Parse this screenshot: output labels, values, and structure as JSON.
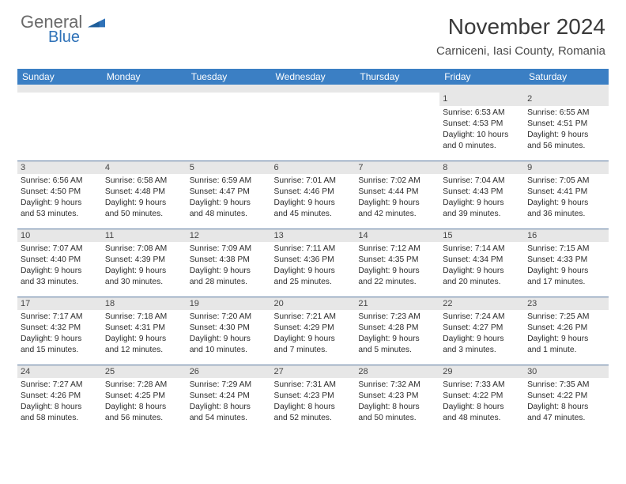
{
  "logo": {
    "text1": "General",
    "text2": "Blue",
    "text1_color": "#6a6a6a",
    "text2_color": "#2f72b8"
  },
  "title": "November 2024",
  "subtitle": "Carniceni, Iasi County, Romania",
  "style": {
    "header_bg": "#3b7fc4",
    "header_fg": "#ffffff",
    "daynum_bg": "#e7e7e7",
    "row_divider": "#5a7aa0",
    "body_font_size": 10.3,
    "daynum_font_size": 11,
    "th_font_size": 12,
    "title_font_size": 28,
    "subtitle_font_size": 15
  },
  "weekdays": [
    "Sunday",
    "Monday",
    "Tuesday",
    "Wednesday",
    "Thursday",
    "Friday",
    "Saturday"
  ],
  "weeks": [
    [
      null,
      null,
      null,
      null,
      null,
      {
        "n": "1",
        "sunrise": "6:53 AM",
        "sunset": "4:53 PM",
        "day_h": "10",
        "day_m": "0"
      },
      {
        "n": "2",
        "sunrise": "6:55 AM",
        "sunset": "4:51 PM",
        "day_h": "9",
        "day_m": "56"
      }
    ],
    [
      {
        "n": "3",
        "sunrise": "6:56 AM",
        "sunset": "4:50 PM",
        "day_h": "9",
        "day_m": "53"
      },
      {
        "n": "4",
        "sunrise": "6:58 AM",
        "sunset": "4:48 PM",
        "day_h": "9",
        "day_m": "50"
      },
      {
        "n": "5",
        "sunrise": "6:59 AM",
        "sunset": "4:47 PM",
        "day_h": "9",
        "day_m": "48"
      },
      {
        "n": "6",
        "sunrise": "7:01 AM",
        "sunset": "4:46 PM",
        "day_h": "9",
        "day_m": "45"
      },
      {
        "n": "7",
        "sunrise": "7:02 AM",
        "sunset": "4:44 PM",
        "day_h": "9",
        "day_m": "42"
      },
      {
        "n": "8",
        "sunrise": "7:04 AM",
        "sunset": "4:43 PM",
        "day_h": "9",
        "day_m": "39"
      },
      {
        "n": "9",
        "sunrise": "7:05 AM",
        "sunset": "4:41 PM",
        "day_h": "9",
        "day_m": "36"
      }
    ],
    [
      {
        "n": "10",
        "sunrise": "7:07 AM",
        "sunset": "4:40 PM",
        "day_h": "9",
        "day_m": "33"
      },
      {
        "n": "11",
        "sunrise": "7:08 AM",
        "sunset": "4:39 PM",
        "day_h": "9",
        "day_m": "30"
      },
      {
        "n": "12",
        "sunrise": "7:09 AM",
        "sunset": "4:38 PM",
        "day_h": "9",
        "day_m": "28"
      },
      {
        "n": "13",
        "sunrise": "7:11 AM",
        "sunset": "4:36 PM",
        "day_h": "9",
        "day_m": "25"
      },
      {
        "n": "14",
        "sunrise": "7:12 AM",
        "sunset": "4:35 PM",
        "day_h": "9",
        "day_m": "22"
      },
      {
        "n": "15",
        "sunrise": "7:14 AM",
        "sunset": "4:34 PM",
        "day_h": "9",
        "day_m": "20"
      },
      {
        "n": "16",
        "sunrise": "7:15 AM",
        "sunset": "4:33 PM",
        "day_h": "9",
        "day_m": "17"
      }
    ],
    [
      {
        "n": "17",
        "sunrise": "7:17 AM",
        "sunset": "4:32 PM",
        "day_h": "9",
        "day_m": "15"
      },
      {
        "n": "18",
        "sunrise": "7:18 AM",
        "sunset": "4:31 PM",
        "day_h": "9",
        "day_m": "12"
      },
      {
        "n": "19",
        "sunrise": "7:20 AM",
        "sunset": "4:30 PM",
        "day_h": "9",
        "day_m": "10"
      },
      {
        "n": "20",
        "sunrise": "7:21 AM",
        "sunset": "4:29 PM",
        "day_h": "9",
        "day_m": "7"
      },
      {
        "n": "21",
        "sunrise": "7:23 AM",
        "sunset": "4:28 PM",
        "day_h": "9",
        "day_m": "5"
      },
      {
        "n": "22",
        "sunrise": "7:24 AM",
        "sunset": "4:27 PM",
        "day_h": "9",
        "day_m": "3"
      },
      {
        "n": "23",
        "sunrise": "7:25 AM",
        "sunset": "4:26 PM",
        "day_h": "9",
        "day_m": "1"
      }
    ],
    [
      {
        "n": "24",
        "sunrise": "7:27 AM",
        "sunset": "4:26 PM",
        "day_h": "8",
        "day_m": "58"
      },
      {
        "n": "25",
        "sunrise": "7:28 AM",
        "sunset": "4:25 PM",
        "day_h": "8",
        "day_m": "56"
      },
      {
        "n": "26",
        "sunrise": "7:29 AM",
        "sunset": "4:24 PM",
        "day_h": "8",
        "day_m": "54"
      },
      {
        "n": "27",
        "sunrise": "7:31 AM",
        "sunset": "4:23 PM",
        "day_h": "8",
        "day_m": "52"
      },
      {
        "n": "28",
        "sunrise": "7:32 AM",
        "sunset": "4:23 PM",
        "day_h": "8",
        "day_m": "50"
      },
      {
        "n": "29",
        "sunrise": "7:33 AM",
        "sunset": "4:22 PM",
        "day_h": "8",
        "day_m": "48"
      },
      {
        "n": "30",
        "sunrise": "7:35 AM",
        "sunset": "4:22 PM",
        "day_h": "8",
        "day_m": "47"
      }
    ]
  ]
}
